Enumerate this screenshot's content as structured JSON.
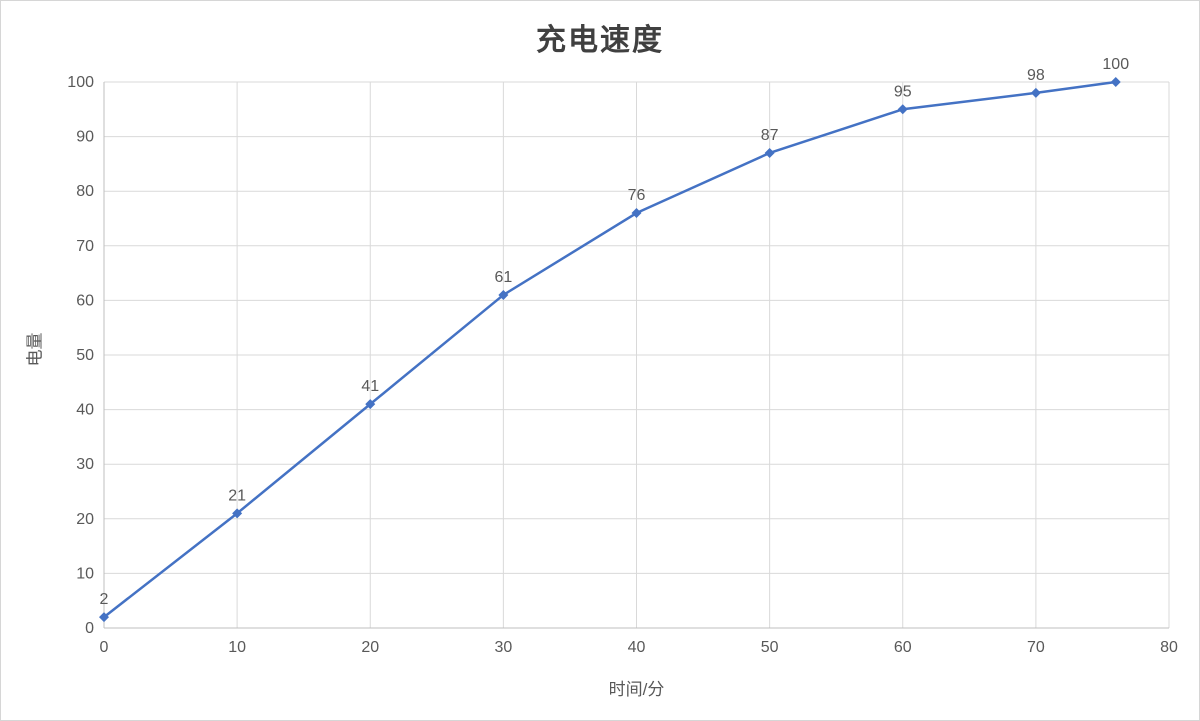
{
  "chart_data": {
    "type": "line",
    "title": "充电速度",
    "xlabel": "时间/分",
    "ylabel": "电量",
    "x": [
      0,
      10,
      20,
      30,
      40,
      50,
      60,
      70,
      76
    ],
    "values": [
      2,
      21,
      41,
      61,
      76,
      87,
      95,
      98,
      100
    ],
    "data_labels": [
      "2",
      "21",
      "41",
      "61",
      "76",
      "87",
      "95",
      "98",
      "100"
    ],
    "xlim": [
      0,
      80
    ],
    "ylim": [
      0,
      100
    ],
    "x_ticks": [
      0,
      10,
      20,
      30,
      40,
      50,
      60,
      70,
      80
    ],
    "y_ticks": [
      0,
      10,
      20,
      30,
      40,
      50,
      60,
      70,
      80,
      90,
      100
    ],
    "grid": true,
    "legend": "none",
    "line_color": "#4472C4",
    "marker": "diamond",
    "marker_color": "#4472C4",
    "label_color": "#595959",
    "tick_color": "#595959",
    "grid_color": "#D9D9D9",
    "axis_color": "#BFBFBF",
    "title_color": "#404040",
    "background_color": "#FFFFFF"
  }
}
